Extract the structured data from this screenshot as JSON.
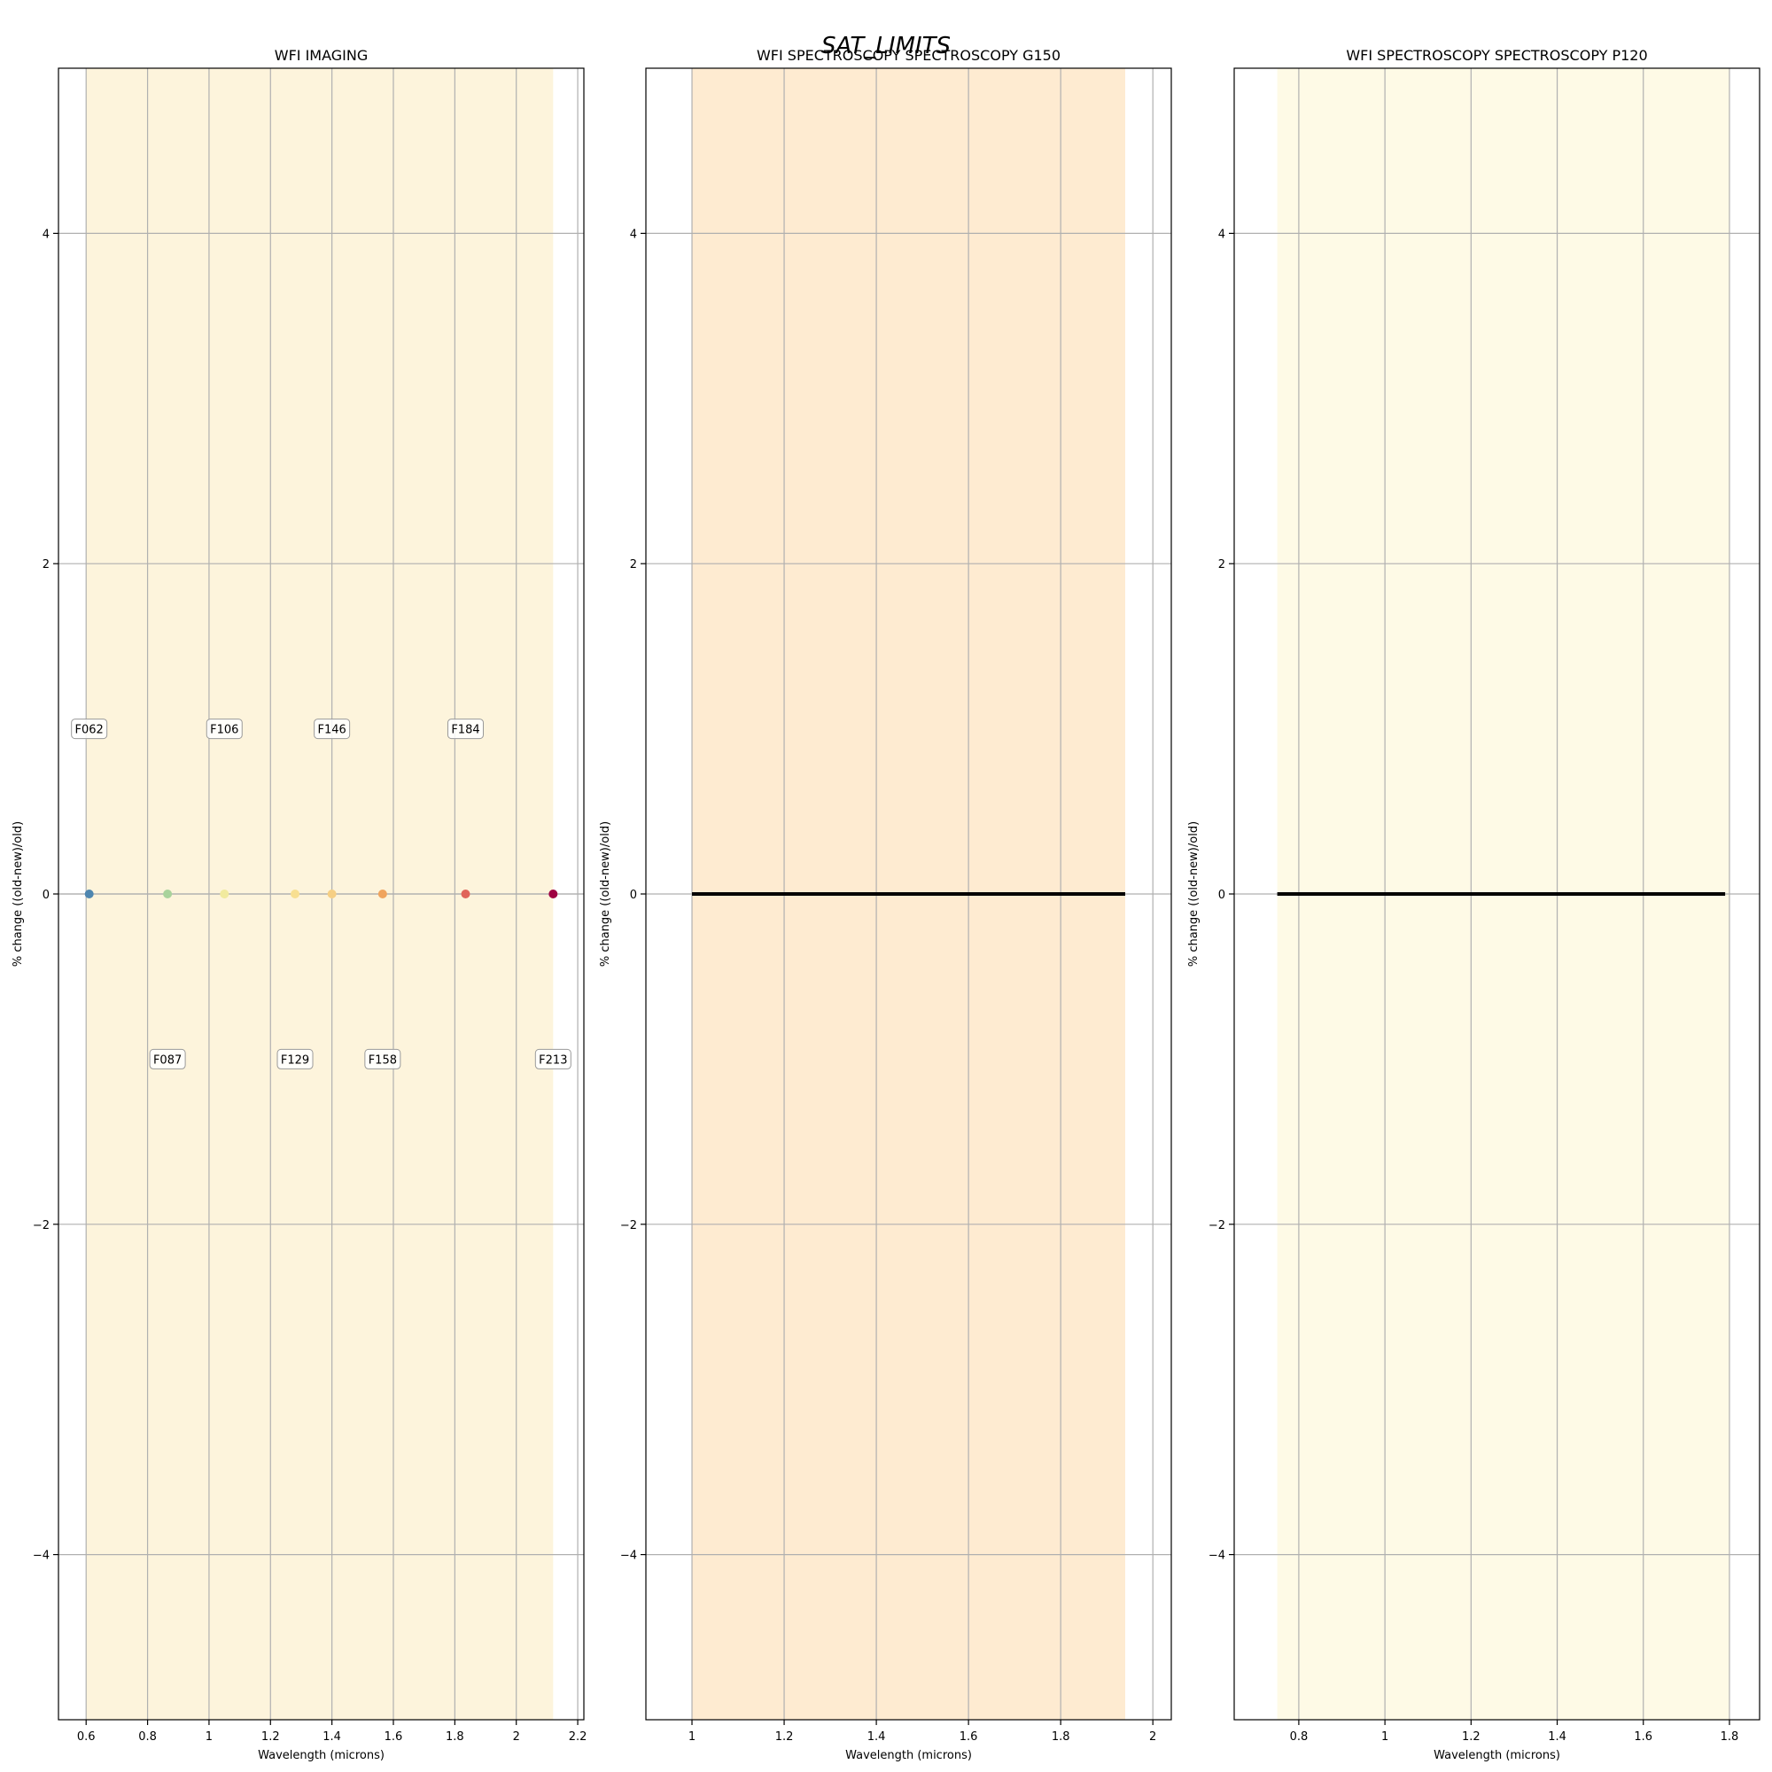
{
  "figure": {
    "suptitle": "SAT_LIMITS"
  },
  "chart_data": [
    {
      "type": "scatter",
      "title": "WFI IMAGING",
      "xlabel": "Wavelength (microns)",
      "ylabel": "% change ((old-new)/old)",
      "xlim": [
        0.51,
        2.22
      ],
      "ylim": [
        -5,
        5
      ],
      "xticks": [
        0.6,
        0.8,
        1.0,
        1.2,
        1.4,
        1.6,
        1.8,
        2.0,
        2.2
      ],
      "xtick_labels": [
        "0.6",
        "0.8",
        "1",
        "1.2",
        "1.4",
        "1.6",
        "1.8",
        "2",
        "2.2"
      ],
      "yticks": [
        -4,
        -2,
        0,
        2,
        4
      ],
      "ytick_labels": [
        "−4",
        "−2",
        "0",
        "2",
        "4"
      ],
      "grid": true,
      "band": {
        "from": 0.6,
        "to": 2.12,
        "color": "#fdf4dc"
      },
      "points": [
        {
          "label": "F062",
          "x": 0.61,
          "y": 0,
          "color": "#4e86b0",
          "label_y": 1.0
        },
        {
          "label": "F087",
          "x": 0.865,
          "y": 0,
          "color": "#a9d39c",
          "label_y": -1.0
        },
        {
          "label": "F106",
          "x": 1.05,
          "y": 0,
          "color": "#f1ea9e",
          "label_y": 1.0
        },
        {
          "label": "F129",
          "x": 1.28,
          "y": 0,
          "color": "#f8df91",
          "label_y": -1.0
        },
        {
          "label": "F146",
          "x": 1.4,
          "y": 0,
          "color": "#f6cf84",
          "label_y": 1.0
        },
        {
          "label": "F158",
          "x": 1.565,
          "y": 0,
          "color": "#f0a45e",
          "label_y": -1.0
        },
        {
          "label": "F184",
          "x": 1.835,
          "y": 0,
          "color": "#e0645a",
          "label_y": 1.0
        },
        {
          "label": "F213",
          "x": 2.12,
          "y": 0,
          "color": "#9e0142",
          "label_y": -1.0
        }
      ]
    },
    {
      "type": "line",
      "title": "WFI SPECTROSCOPY SPECTROSCOPY G150",
      "xlabel": "Wavelength (microns)",
      "ylabel": "% change ((old-new)/old)",
      "xlim": [
        0.9,
        2.04
      ],
      "ylim": [
        -5,
        5
      ],
      "xticks": [
        1.0,
        1.2,
        1.4,
        1.6,
        1.8,
        2.0
      ],
      "xtick_labels": [
        "1",
        "1.2",
        "1.4",
        "1.6",
        "1.8",
        "2"
      ],
      "yticks": [
        -4,
        -2,
        0,
        2,
        4
      ],
      "ytick_labels": [
        "−4",
        "−2",
        "0",
        "2",
        "4"
      ],
      "grid": true,
      "band": {
        "from": 1.0,
        "to": 1.94,
        "color": "#feebd1"
      },
      "series": [
        {
          "color": "#000000",
          "x": [
            1.0,
            1.94
          ],
          "y": [
            0,
            0
          ]
        }
      ]
    },
    {
      "type": "line",
      "title": "WFI SPECTROSCOPY SPECTROSCOPY P120",
      "xlabel": "Wavelength (microns)",
      "ylabel": "% change ((old-new)/old)",
      "xlim": [
        0.65,
        1.87
      ],
      "ylim": [
        -5,
        5
      ],
      "xticks": [
        0.8,
        1.0,
        1.2,
        1.4,
        1.6,
        1.8
      ],
      "xtick_labels": [
        "0.8",
        "1",
        "1.2",
        "1.4",
        "1.6",
        "1.8"
      ],
      "yticks": [
        -4,
        -2,
        0,
        2,
        4
      ],
      "ytick_labels": [
        "−4",
        "−2",
        "0",
        "2",
        "4"
      ],
      "grid": true,
      "band": {
        "from": 0.75,
        "to": 1.8,
        "color": "#fefae6"
      },
      "series": [
        {
          "color": "#000000",
          "x": [
            0.75,
            1.79
          ],
          "y": [
            0,
            0
          ]
        }
      ]
    }
  ]
}
